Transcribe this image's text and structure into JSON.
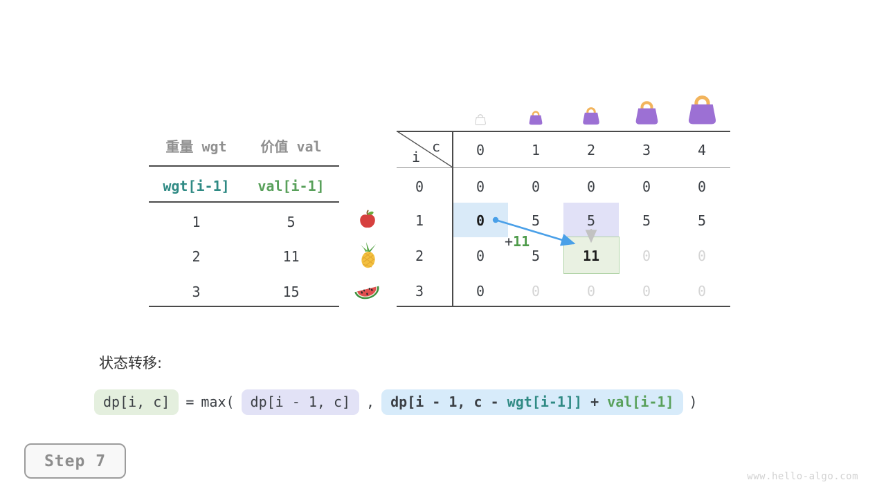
{
  "items_table": {
    "col_headers": [
      "重量 wgt",
      "价值 val"
    ],
    "index_row": {
      "wgt": "wgt[i-1]",
      "val": "val[i-1]"
    },
    "rows": [
      {
        "wgt": "1",
        "val": "5",
        "icon": "apple-icon"
      },
      {
        "wgt": "2",
        "val": "11",
        "icon": "pineapple-icon"
      },
      {
        "wgt": "3",
        "val": "15",
        "icon": "watermelon-icon"
      }
    ]
  },
  "dp_table": {
    "corner": {
      "row_var": "i",
      "col_var": "c"
    },
    "col_headers": [
      "0",
      "1",
      "2",
      "3",
      "4"
    ],
    "row_headers": [
      "0",
      "1",
      "2",
      "3"
    ],
    "capacity_icons": [
      {
        "name": "bag-icon-empty",
        "ghost": true
      },
      {
        "name": "bag-icon-1",
        "ghost": false
      },
      {
        "name": "bag-icon-2",
        "ghost": false
      },
      {
        "name": "bag-icon-3",
        "ghost": false
      },
      {
        "name": "bag-icon-4",
        "ghost": false
      }
    ],
    "cells": [
      [
        "0",
        "0",
        "0",
        "0",
        "0"
      ],
      [
        "0",
        "5",
        "5",
        "5",
        "5"
      ],
      [
        "0",
        "5",
        "11",
        "0",
        "0"
      ],
      [
        "0",
        "0",
        "0",
        "0",
        "0"
      ]
    ],
    "cell_styles": [
      [
        "",
        "",
        "",
        "",
        ""
      ],
      [
        "bold",
        "",
        "",
        "",
        ""
      ],
      [
        "",
        "",
        "bold",
        "muted",
        "muted"
      ],
      [
        "",
        "muted",
        "muted",
        "muted",
        "muted"
      ]
    ],
    "transition_annotation": {
      "plus": "+",
      "value": "11"
    }
  },
  "formula": {
    "section_label": "状态转移:",
    "lhs": "dp[i, c]",
    "equals": "=",
    "max_open": "max(",
    "arg1": "dp[i - 1, c]",
    "comma": ",",
    "arg2": [
      {
        "text": "dp[i - 1, c - ",
        "tone": "dark"
      },
      {
        "text": "wgt[i-1]]",
        "tone": "teal"
      },
      {
        "text": " + ",
        "tone": "dark"
      },
      {
        "text": "val[i-1]",
        "tone": "green"
      }
    ],
    "close_paren": ")"
  },
  "step_badge": {
    "label": "Step 7"
  },
  "watermark": "www.hello-algo.com",
  "colors": {
    "accent_teal": "#2f8a84",
    "accent_green": "#58a05a",
    "arrow_blue": "#4aa0e8",
    "highlight_source": "#d9eaf8",
    "highlight_prev": "#e1e1f7",
    "highlight_target": "#e9f1e2",
    "bag_body": "#9c70d4",
    "bag_handle": "#f2b45c",
    "muted_text": "#d4d4d4"
  }
}
